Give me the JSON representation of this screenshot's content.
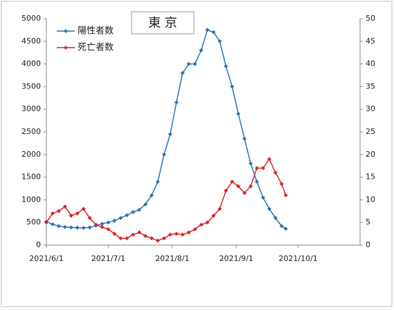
{
  "chart_data": {
    "type": "line",
    "title": "東 京",
    "x": [
      "2021/6/1",
      "2021/6/4",
      "2021/6/7",
      "2021/6/10",
      "2021/6/13",
      "2021/6/16",
      "2021/6/19",
      "2021/6/22",
      "2021/6/25",
      "2021/6/28",
      "2021/7/1",
      "2021/7/4",
      "2021/7/7",
      "2021/7/10",
      "2021/7/13",
      "2021/7/16",
      "2021/7/19",
      "2021/7/22",
      "2021/7/25",
      "2021/7/28",
      "2021/7/31",
      "2021/8/3",
      "2021/8/6",
      "2021/8/9",
      "2021/8/12",
      "2021/8/15",
      "2021/8/18",
      "2021/8/21",
      "2021/8/24",
      "2021/8/27",
      "2021/8/30",
      "2021/9/2",
      "2021/9/5",
      "2021/9/8",
      "2021/9/11",
      "2021/9/14",
      "2021/9/17",
      "2021/9/20",
      "2021/9/23",
      "2021/9/25"
    ],
    "series": [
      {
        "name": "陽性者数",
        "color": "#2e75b6",
        "values": [
          520,
          460,
          420,
          400,
          390,
          385,
          380,
          390,
          430,
          470,
          500,
          540,
          600,
          660,
          730,
          780,
          900,
          1100,
          1400,
          2000,
          2450,
          3150,
          3800,
          4000,
          4000,
          4300,
          4750,
          4700,
          4500,
          3950,
          3500,
          2900,
          2350,
          1800,
          1400,
          1050,
          800,
          600,
          420,
          360
        ]
      },
      {
        "name": "死亡者数",
        "color": "#d42a2a",
        "axis": "y2",
        "values": [
          5,
          7,
          7.5,
          8.5,
          6.5,
          7,
          8,
          6,
          4.5,
          4,
          3.5,
          2.5,
          1.5,
          1.5,
          2.3,
          2.8,
          2,
          1.5,
          1,
          1.5,
          2.3,
          2.5,
          2.3,
          2.8,
          3.5,
          4.5,
          5,
          6.5,
          8,
          12,
          14,
          13,
          11.5,
          13,
          17,
          17,
          19,
          16,
          13.5,
          11
        ]
      }
    ],
    "xlim": [
      "2021/6/1",
      "2021/10/31"
    ],
    "xticks": [
      "2021/6/1",
      "2021/7/1",
      "2021/8/1",
      "2021/9/1",
      "2021/10/1"
    ],
    "ylim": [
      0,
      5000
    ],
    "yticks": [
      0,
      500,
      1000,
      1500,
      2000,
      2500,
      3000,
      3500,
      4000,
      4500,
      5000
    ],
    "y2lim": [
      0,
      50
    ],
    "y2ticks": [
      0,
      5,
      10,
      15,
      20,
      25,
      30,
      35,
      40,
      45,
      50
    ],
    "legend": "upper left"
  }
}
